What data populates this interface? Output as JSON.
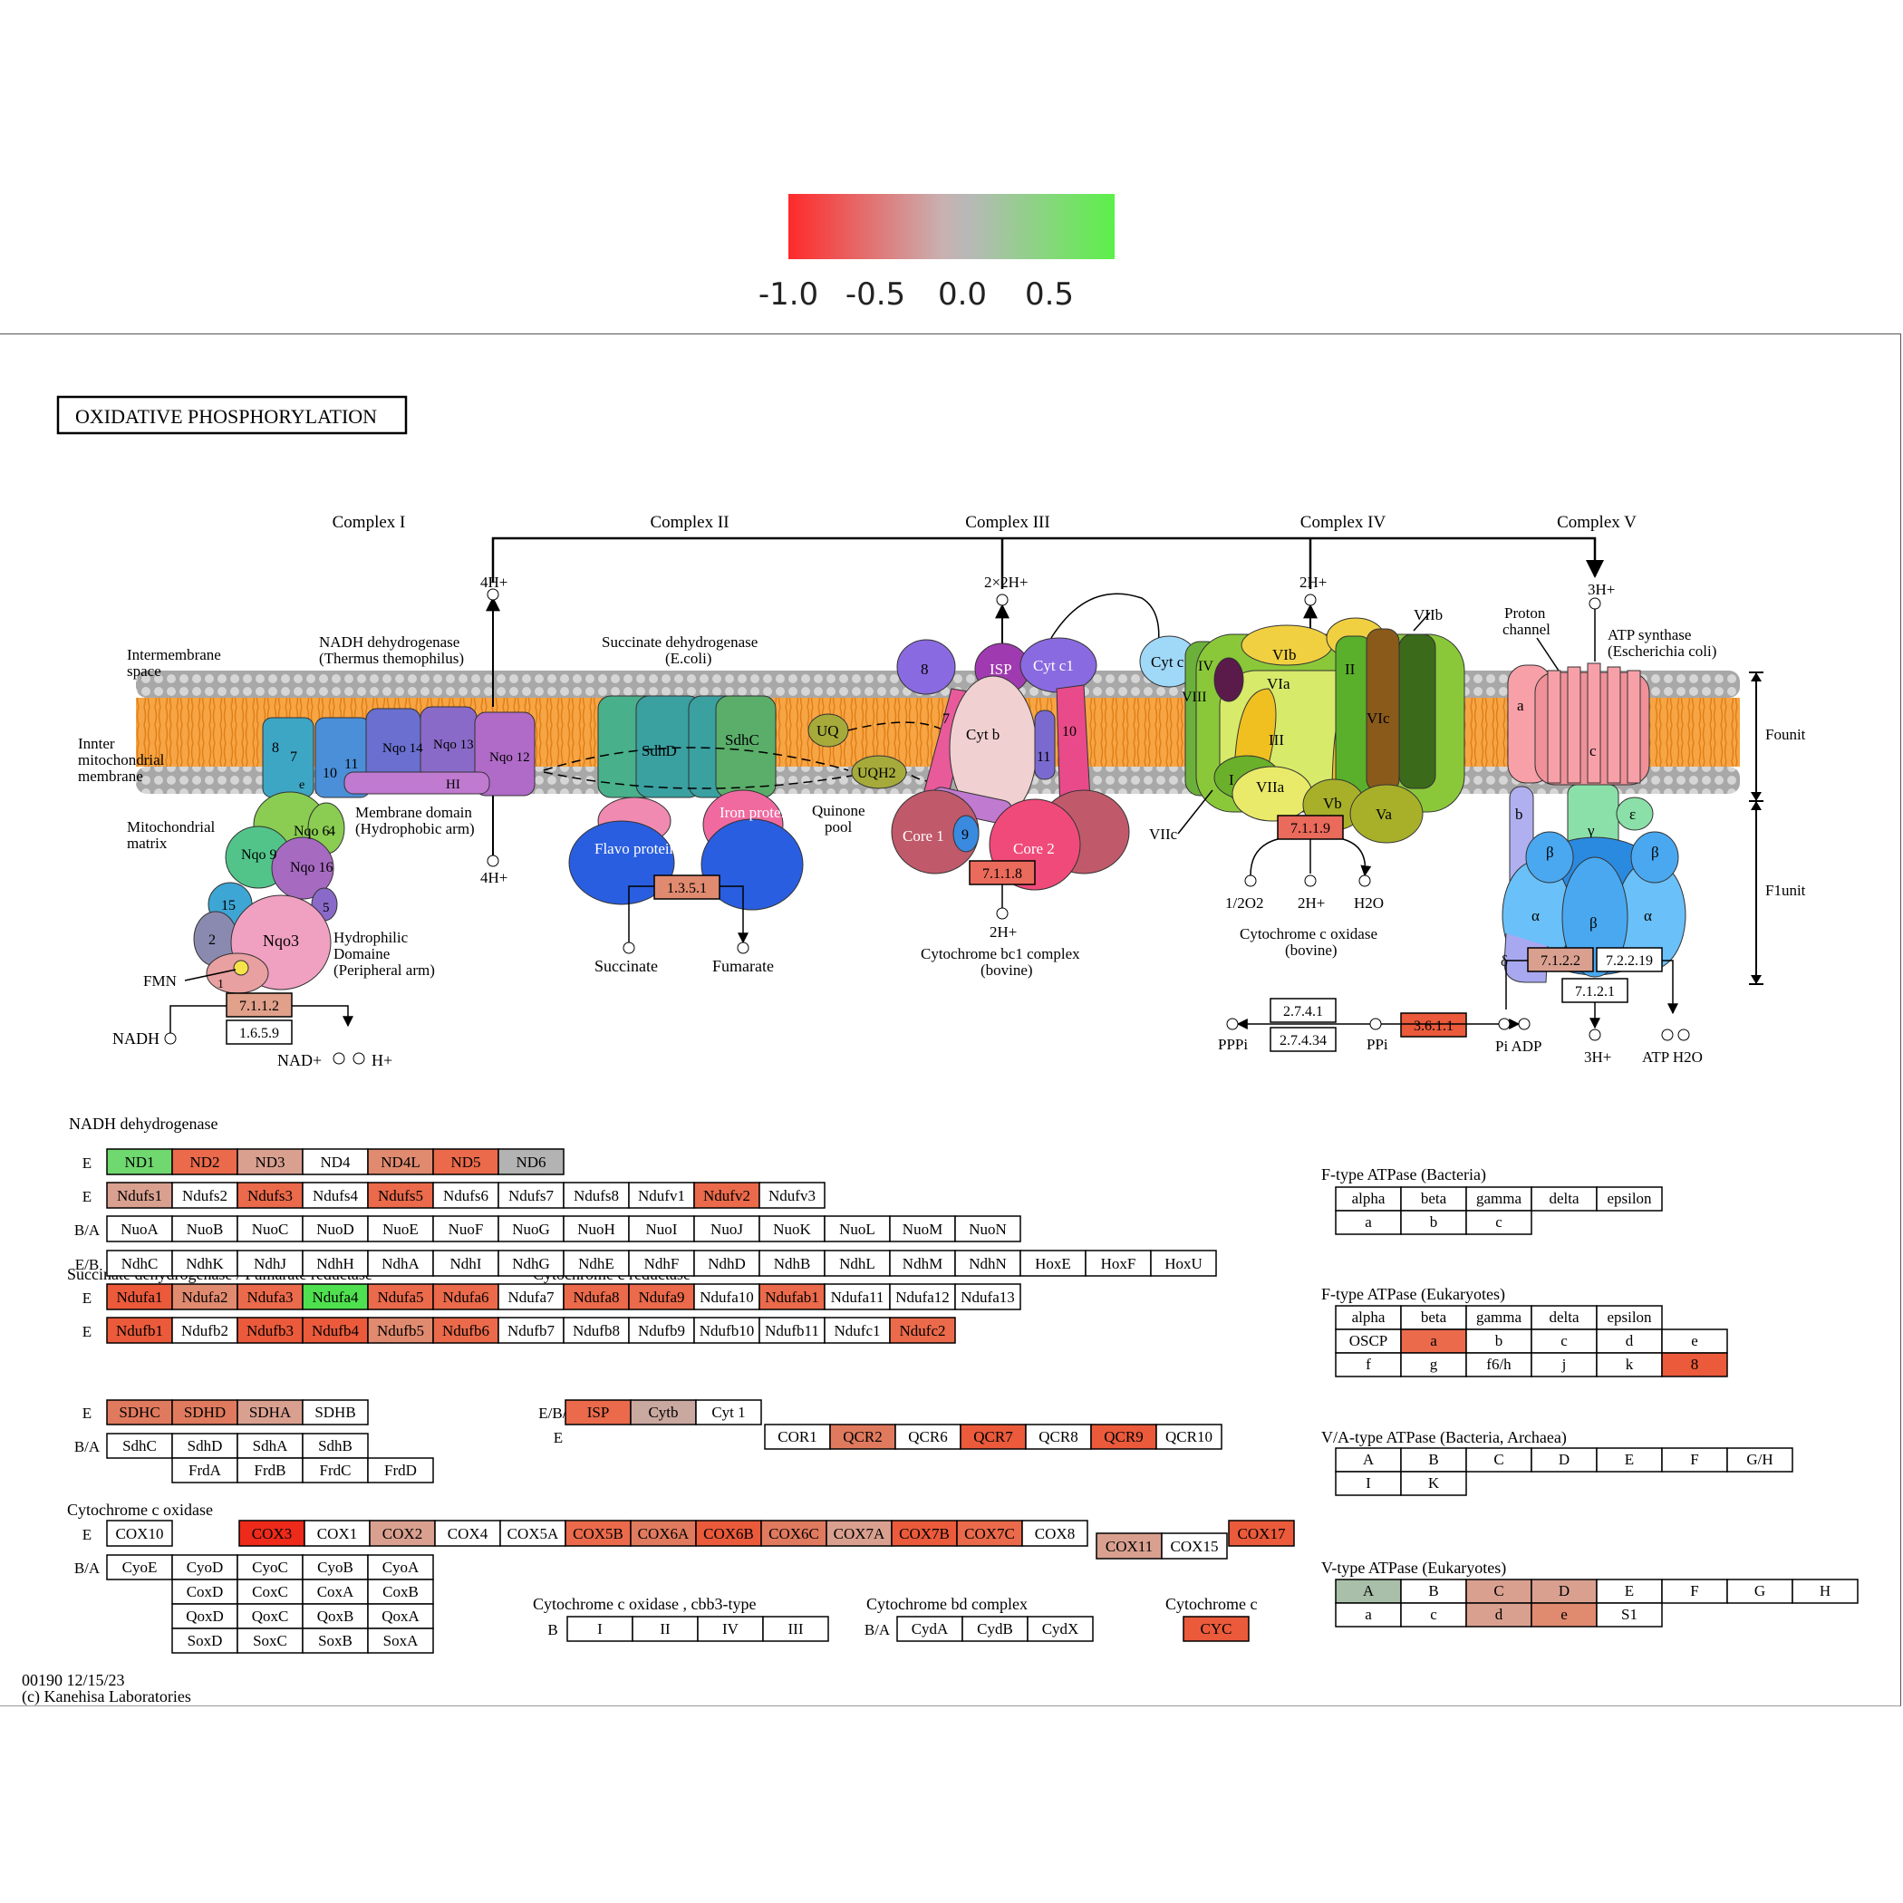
{
  "legend": {
    "ticks": [
      "-1.0",
      "-0.5",
      "0.0",
      "0.5"
    ],
    "colors": [
      "#ff2a2a",
      "#b8b8b8",
      "#5cf04a"
    ]
  },
  "title": "OXIDATIVE  PHOSPHORYLATION",
  "complexes": [
    "Complex I",
    "Complex II",
    "Complex III",
    "Complex IV",
    "Complex V"
  ],
  "labels": {
    "intermembrane": [
      "Intermembrane",
      "space"
    ],
    "inner_membrane": [
      "Innter",
      "mitochondrial",
      "membrane"
    ],
    "matrix": [
      "Mitochondrial",
      "matrix"
    ],
    "nadh_dh": [
      "NADH dehydrogenase",
      "(Thermus themophilus)"
    ],
    "membrane_domain": [
      "Membrane domain",
      "(Hydrophobic arm)"
    ],
    "hydrophilic": [
      "Hydrophilic",
      "Domaine",
      "(Peripheral arm)"
    ],
    "succ_dh": [
      "Succinate dehydrogenase",
      "(E.coli)"
    ],
    "quinone_pool": [
      "Quinone",
      "pool"
    ],
    "cyt_bc1": [
      "Cytochrome bc1 complex",
      "(bovine)"
    ],
    "cyt_c_ox": [
      "Cytochrome c oxidase",
      "(bovine)"
    ],
    "proton_channel": [
      "Proton",
      "channel"
    ],
    "atp_synthase": [
      "ATP synthase",
      "(Escherichia coli)"
    ],
    "founit": "Founit",
    "f1unit": "F1unit",
    "proton_4h_top": "4H+",
    "proton_4h_bottom": "4H+",
    "proton_2x2h": "2×2H+",
    "proton_2h_top": "2H+",
    "proton_3h_top": "3H+",
    "proton_2h_c3": "2H+",
    "o2": "1/2O2",
    "h_c4": "2H+",
    "h2o_c4": "H2O",
    "nadh": "NADH",
    "nad": "NAD+",
    "h_c1": "H+",
    "fmn": "FMN",
    "succinate": "Succinate",
    "fumarate": "Fumarate",
    "pppi": "PPPi",
    "ppi": "PPi",
    "pi_adp": "Pi ADP",
    "h_c5": "3H+",
    "atp_h2o": "ATP  H2O"
  },
  "subunits": {
    "c1": [
      "8",
      "7",
      "e",
      "10",
      "11",
      "Nqo 14",
      "Nqo 13",
      "HI",
      "Nqo 12",
      "Nqo 6",
      "4",
      "Nqo 9",
      "Nqo 16",
      "15",
      "5",
      "2",
      "Nqo3",
      "1"
    ],
    "c2": [
      "SdhD",
      "SdhC",
      "Flavo protein",
      "Iron protein",
      "UQ",
      "UQH2"
    ],
    "c3": [
      "8",
      "ISP",
      "Cyt c1",
      "7",
      "Cyt b",
      "10",
      "11",
      "6",
      "9",
      "Core 1",
      "Core 2"
    ],
    "c4": [
      "Cyt c",
      "IV",
      "VIII",
      "VIb",
      "VIa",
      "III",
      "II",
      "VIc",
      "VIIb",
      "I",
      "VIIa",
      "Vb",
      "Va",
      "VIIc"
    ],
    "c5": [
      "a",
      "c",
      "b",
      "ε",
      "γ",
      "β",
      "β",
      "α",
      "β",
      "α",
      "δ"
    ]
  },
  "enzymes": {
    "c1_a": "7.1.1.2",
    "c1_b": "1.6.5.9",
    "c2": "1.3.5.1",
    "c3": "7.1.1.8",
    "c4": "7.1.1.9",
    "c5_a": "7.1.2.2",
    "c5_b": "7.2.2.19",
    "c5_c": "7.1.2.1",
    "ppa_a": "2.7.4.1",
    "ppa_b": "2.7.4.34",
    "ppase": "3.6.1.1"
  },
  "sections": {
    "nadh": "NADH dehydrogenase",
    "sdh": "Succinate dehydrogenase / Fumarate reductase",
    "cyt_c_reductase": "Cytochrome c reductase",
    "cyt_c_oxidase": "Cytochrome c oxidase",
    "cbb3": "Cytochrome c oxidase , cbb3-type",
    "bd": "Cytochrome bd complex",
    "cytc": "Cytochrome c",
    "f_bact": "F-type ATPase (Bacteria)",
    "f_euk": "F-type ATPase (Eukaryotes)",
    "va": "V/A-type ATPase (Bacteria, Archaea)",
    "v_euk": "V-type ATPase (Eukaryotes)"
  },
  "rows": {
    "nadh_1": {
      "tag": "E",
      "genes": [
        [
          "ND1",
          "#6fd86f"
        ],
        [
          "ND2",
          "#ea6a4b"
        ],
        [
          "ND3",
          "#d9a090"
        ],
        [
          "ND4",
          ""
        ],
        [
          "ND4L",
          "#e08a70"
        ],
        [
          "ND5",
          "#ea6a4b"
        ],
        [
          "ND6",
          "#b3b3b3"
        ]
      ]
    },
    "nadh_2": {
      "tag": "E",
      "genes": [
        [
          "Ndufs1",
          "#d9a090"
        ],
        [
          "Ndufs2",
          ""
        ],
        [
          "Ndufs3",
          "#ea6a4b"
        ],
        [
          "Ndufs4",
          ""
        ],
        [
          "Ndufs5",
          "#ea6a4b"
        ],
        [
          "Ndufs6",
          ""
        ],
        [
          "Ndufs7",
          ""
        ],
        [
          "Ndufs8",
          ""
        ],
        [
          "Ndufv1",
          ""
        ],
        [
          "Ndufv2",
          "#ea6a4b"
        ],
        [
          "Ndufv3",
          ""
        ]
      ]
    },
    "nadh_3": {
      "tag": "B/A",
      "genes": [
        [
          "NuoA",
          ""
        ],
        [
          "NuoB",
          ""
        ],
        [
          "NuoC",
          ""
        ],
        [
          "NuoD",
          ""
        ],
        [
          "NuoE",
          ""
        ],
        [
          "NuoF",
          ""
        ],
        [
          "NuoG",
          ""
        ],
        [
          "NuoH",
          ""
        ],
        [
          "NuoI",
          ""
        ],
        [
          "NuoJ",
          ""
        ],
        [
          "NuoK",
          ""
        ],
        [
          "NuoL",
          ""
        ],
        [
          "NuoM",
          ""
        ],
        [
          "NuoN",
          ""
        ]
      ]
    },
    "nadh_4": {
      "tag": "E/B",
      "genes": [
        [
          "NdhC",
          ""
        ],
        [
          "NdhK",
          ""
        ],
        [
          "NdhJ",
          ""
        ],
        [
          "NdhH",
          ""
        ],
        [
          "NdhA",
          ""
        ],
        [
          "NdhI",
          ""
        ],
        [
          "NdhG",
          ""
        ],
        [
          "NdhE",
          ""
        ],
        [
          "NdhF",
          ""
        ],
        [
          "NdhD",
          ""
        ],
        [
          "NdhB",
          ""
        ],
        [
          "NdhL",
          ""
        ],
        [
          "NdhM",
          ""
        ],
        [
          "NdhN",
          ""
        ],
        [
          "HoxE",
          ""
        ],
        [
          "HoxF",
          ""
        ],
        [
          "HoxU",
          ""
        ]
      ]
    },
    "nadh_5": {
      "tag": "E",
      "genes": [
        [
          "Ndufa1",
          "#ea5a3b"
        ],
        [
          "Ndufa2",
          "#e08a70"
        ],
        [
          "Ndufa3",
          "#ea6a4b"
        ],
        [
          "Ndufa4",
          "#4fe04f"
        ],
        [
          "Ndufa5",
          "#ea6a4b"
        ],
        [
          "Ndufa6",
          "#ea6a4b"
        ],
        [
          "Ndufa7",
          ""
        ],
        [
          "Ndufa8",
          "#ea6a4b"
        ],
        [
          "Ndufa9",
          "#ea6a4b"
        ],
        [
          "Ndufa10",
          ""
        ],
        [
          "Ndufab1",
          "#ea6a4b"
        ],
        [
          "Ndufa11",
          ""
        ],
        [
          "Ndufa12",
          ""
        ],
        [
          "Ndufa13",
          ""
        ]
      ]
    },
    "nadh_6": {
      "tag": "E",
      "genes": [
        [
          "Ndufb1",
          "#ea5a3b"
        ],
        [
          "Ndufb2",
          ""
        ],
        [
          "Ndufb3",
          "#ea5a3b"
        ],
        [
          "Ndufb4",
          "#ea5a3b"
        ],
        [
          "Ndufb5",
          "#e08a70"
        ],
        [
          "Ndufb6",
          "#ea6a4b"
        ],
        [
          "Ndufb7",
          ""
        ],
        [
          "Ndufb8",
          ""
        ],
        [
          "Ndufb9",
          ""
        ],
        [
          "Ndufb10",
          ""
        ],
        [
          "Ndufb11",
          ""
        ],
        [
          "Ndufc1",
          ""
        ],
        [
          "Ndufc2",
          "#ea6a4b"
        ]
      ]
    },
    "sdh_1": {
      "tag": "E",
      "genes": [
        [
          "SDHC",
          "#e07a5e"
        ],
        [
          "SDHD",
          "#e07a5e"
        ],
        [
          "SDHA",
          "#d9a090"
        ],
        [
          "SDHB",
          ""
        ]
      ]
    },
    "sdh_2": {
      "tag": "B/A",
      "genes": [
        [
          "SdhC",
          ""
        ],
        [
          "SdhD",
          ""
        ],
        [
          "SdhA",
          ""
        ],
        [
          "SdhB",
          ""
        ]
      ]
    },
    "sdh_3": {
      "tag": "",
      "genes": [
        [
          "FrdA",
          ""
        ],
        [
          "FrdB",
          ""
        ],
        [
          "FrdC",
          ""
        ],
        [
          "FrdD",
          ""
        ]
      ]
    },
    "ccr_1": {
      "tag": "E/B/A",
      "genes": [
        [
          "ISP",
          "#ea6a4b"
        ],
        [
          "Cytb",
          "#c9a8a0"
        ],
        [
          "Cyt 1",
          ""
        ]
      ]
    },
    "ccr_2": {
      "tag": "E",
      "genes": [
        [
          "COR1",
          ""
        ],
        [
          "QCR2",
          "#e07a5e"
        ],
        [
          "QCR6",
          ""
        ],
        [
          "QCR7",
          "#ea5a3b"
        ],
        [
          "QCR8",
          ""
        ],
        [
          "QCR9",
          "#ea5a3b"
        ],
        [
          "QCR10",
          ""
        ]
      ]
    },
    "cox_1": {
      "tag": "E",
      "genes": [
        [
          "COX10",
          ""
        ]
      ]
    },
    "cox_2": {
      "tag": "",
      "genes": [
        [
          "COX3",
          "#ee2a1a"
        ],
        [
          "COX1",
          ""
        ],
        [
          "COX2",
          "#d9a090"
        ],
        [
          "COX4",
          ""
        ],
        [
          "COX5A",
          ""
        ],
        [
          "COX5B",
          "#ea6a4b"
        ],
        [
          "COX6A",
          "#e07a5e"
        ],
        [
          "COX6B",
          "#ea5a3b"
        ],
        [
          "COX6C",
          "#e07a5e"
        ],
        [
          "COX7A",
          "#d9a090"
        ],
        [
          "COX7B",
          "#ea5a3b"
        ],
        [
          "COX7C",
          "#ea6a4b"
        ],
        [
          "COX8",
          ""
        ]
      ]
    },
    "cox_3": {
      "tag": "E/B/A",
      "genes": [
        [
          "COX11",
          "#d9a090"
        ],
        [
          "COX15",
          ""
        ]
      ]
    },
    "cox_4": {
      "tag": "",
      "genes": [
        [
          "COX17",
          "#ea5a3b"
        ]
      ]
    },
    "cox_5": {
      "tag": "B/A",
      "genes": [
        [
          "CyoE",
          ""
        ],
        [
          "CyoD",
          ""
        ],
        [
          "CyoC",
          ""
        ],
        [
          "CyoB",
          ""
        ],
        [
          "CyoA",
          ""
        ]
      ]
    },
    "cox_6": {
      "tag": "",
      "genes": [
        [
          "CoxD",
          ""
        ],
        [
          "CoxC",
          ""
        ],
        [
          "CoxA",
          ""
        ],
        [
          "CoxB",
          ""
        ]
      ]
    },
    "cox_7": {
      "tag": "",
      "genes": [
        [
          "QoxD",
          ""
        ],
        [
          "QoxC",
          ""
        ],
        [
          "QoxB",
          ""
        ],
        [
          "QoxA",
          ""
        ]
      ]
    },
    "cox_8": {
      "tag": "",
      "genes": [
        [
          "SoxD",
          ""
        ],
        [
          "SoxC",
          ""
        ],
        [
          "SoxB",
          ""
        ],
        [
          "SoxA",
          ""
        ]
      ]
    },
    "cbb3": {
      "tag": "B",
      "genes": [
        [
          "I",
          ""
        ],
        [
          "II",
          ""
        ],
        [
          "IV",
          ""
        ],
        [
          "III",
          ""
        ]
      ]
    },
    "bd": {
      "tag": "B/A",
      "genes": [
        [
          "CydA",
          ""
        ],
        [
          "CydB",
          ""
        ],
        [
          "CydX",
          ""
        ]
      ]
    },
    "cytc": {
      "tag": "",
      "genes": [
        [
          "CYC",
          "#ea5a3b"
        ]
      ]
    },
    "fb_1": {
      "tag": "",
      "genes": [
        [
          "alpha",
          ""
        ],
        [
          "beta",
          ""
        ],
        [
          "gamma",
          ""
        ],
        [
          "delta",
          ""
        ],
        [
          "epsilon",
          ""
        ]
      ]
    },
    "fb_2": {
      "tag": "",
      "genes": [
        [
          "a",
          ""
        ],
        [
          "b",
          ""
        ],
        [
          "c",
          ""
        ]
      ]
    },
    "fe_1": {
      "tag": "",
      "genes": [
        [
          "alpha",
          ""
        ],
        [
          "beta",
          ""
        ],
        [
          "gamma",
          ""
        ],
        [
          "delta",
          ""
        ],
        [
          "epsilon",
          ""
        ]
      ]
    },
    "fe_2": {
      "tag": "",
      "genes": [
        [
          "OSCP",
          ""
        ],
        [
          "a",
          "#ea6a4b"
        ],
        [
          "b",
          ""
        ],
        [
          "c",
          ""
        ],
        [
          "d",
          ""
        ],
        [
          "e",
          ""
        ]
      ]
    },
    "fe_3": {
      "tag": "",
      "genes": [
        [
          "f",
          ""
        ],
        [
          "g",
          ""
        ],
        [
          "f6/h",
          ""
        ],
        [
          "j",
          ""
        ],
        [
          "k",
          ""
        ],
        [
          "8",
          "#ea5a3b"
        ]
      ]
    },
    "va_1": {
      "tag": "",
      "genes": [
        [
          "A",
          ""
        ],
        [
          "B",
          ""
        ],
        [
          "C",
          ""
        ],
        [
          "D",
          ""
        ],
        [
          "E",
          ""
        ],
        [
          "F",
          ""
        ],
        [
          "G/H",
          ""
        ]
      ]
    },
    "va_2": {
      "tag": "",
      "genes": [
        [
          "I",
          ""
        ],
        [
          "K",
          ""
        ]
      ]
    },
    "ve_1": {
      "tag": "",
      "genes": [
        [
          "A",
          "#a9bfa9"
        ],
        [
          "B",
          ""
        ],
        [
          "C",
          "#d9a090"
        ],
        [
          "D",
          "#d9a090"
        ],
        [
          "E",
          ""
        ],
        [
          "F",
          ""
        ],
        [
          "G",
          ""
        ],
        [
          "H",
          ""
        ]
      ]
    },
    "ve_2": {
      "tag": "",
      "genes": [
        [
          "a",
          ""
        ],
        [
          "c",
          ""
        ],
        [
          "d",
          "#d9a090"
        ],
        [
          "e",
          "#e08a70"
        ],
        [
          "S1",
          ""
        ]
      ]
    }
  },
  "footer": [
    "00190 12/15/23",
    "(c) Kanehisa Laboratories"
  ]
}
